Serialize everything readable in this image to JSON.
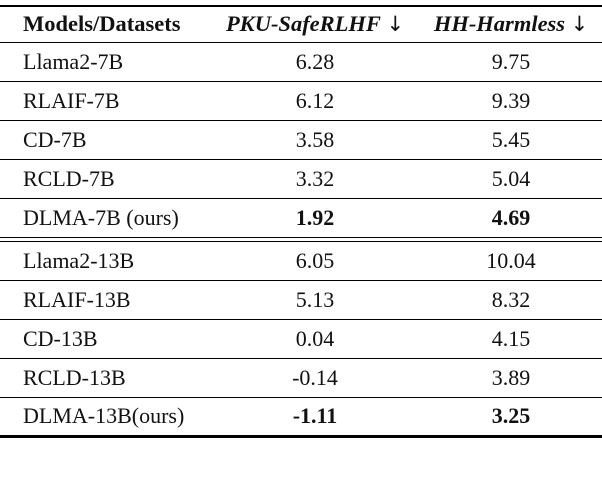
{
  "table": {
    "header": {
      "models": "Models/Datasets",
      "pku": "PKU-SafeRLHF",
      "hh": "HH-Harmless",
      "arrow": "↓"
    },
    "rows": [
      {
        "model": "Llama2-7B",
        "pku": "6.28",
        "hh": "9.75"
      },
      {
        "model": "RLAIF-7B",
        "pku": "6.12",
        "hh": "9.39"
      },
      {
        "model": "CD-7B",
        "pku": "3.58",
        "hh": "5.45"
      },
      {
        "model": "RCLD-7B",
        "pku": "3.32",
        "hh": "5.04"
      },
      {
        "model": "DLMA-7B (ours)",
        "pku": "1.92",
        "hh": "4.69"
      },
      {
        "model": "Llama2-13B",
        "pku": "6.05",
        "hh": "10.04"
      },
      {
        "model": "RLAIF-13B",
        "pku": "5.13",
        "hh": "8.32"
      },
      {
        "model": "CD-13B",
        "pku": "0.04",
        "hh": "4.15"
      },
      {
        "model": "RCLD-13B",
        "pku": "-0.14",
        "hh": "3.89"
      },
      {
        "model": "DLMA-13B(ours)",
        "pku": "-1.11",
        "hh": "3.25"
      }
    ]
  },
  "chart_data": {
    "type": "table",
    "title": "",
    "columns": [
      "Models/Datasets",
      "PKU-SafeRLHF ↓",
      "HH-Harmless ↓"
    ],
    "rows": [
      [
        "Llama2-7B",
        6.28,
        9.75
      ],
      [
        "RLAIF-7B",
        6.12,
        9.39
      ],
      [
        "CD-7B",
        3.58,
        5.45
      ],
      [
        "RCLD-7B",
        3.32,
        5.04
      ],
      [
        "DLMA-7B (ours)",
        1.92,
        4.69
      ],
      [
        "Llama2-13B",
        6.05,
        10.04
      ],
      [
        "RLAIF-13B",
        5.13,
        8.32
      ],
      [
        "CD-13B",
        0.04,
        4.15
      ],
      [
        "RCLD-13B",
        -0.14,
        3.89
      ],
      [
        "DLMA-13B(ours)",
        -1.11,
        3.25
      ]
    ],
    "bold_rows": [
      4,
      9
    ],
    "section_break_after_row": 4
  }
}
